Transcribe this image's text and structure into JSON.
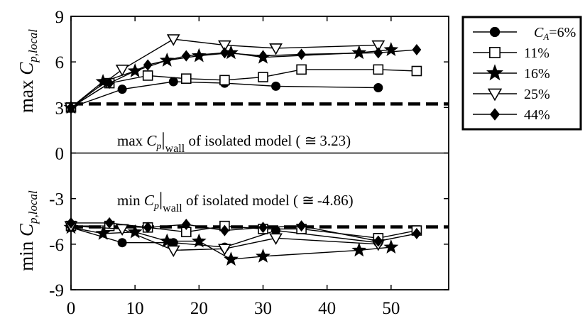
{
  "chart_data": {
    "type": "line",
    "x_ticks": [
      "0",
      "10",
      "20",
      "30",
      "40",
      "50"
    ],
    "xlim": [
      0,
      59
    ],
    "ylim": [
      -9,
      9
    ],
    "y_ticks": [
      "9",
      "6",
      "3",
      "0",
      "-3",
      "-6",
      "-9"
    ],
    "ylabel_top": {
      "main": "max ",
      "sym": "C",
      "sub": "p,local"
    },
    "ylabel_bottom": {
      "main": "min ",
      "sym": "C",
      "sub": "p,local"
    },
    "reference_lines": [
      {
        "y": 3.23,
        "style": "dashed"
      },
      {
        "y": -4.86,
        "style": "dashed"
      },
      {
        "y": 0,
        "style": "solid"
      }
    ],
    "annotations": [
      {
        "pre": "max ",
        "sym": "C",
        "sub": "p",
        "bar": "|",
        "wall": "wall",
        "post": " of isolated model ( ",
        "approx": "≅",
        "value": "3.23)"
      },
      {
        "pre": "min ",
        "sym": "C",
        "sub": "p",
        "bar": "|",
        "wall": "wall",
        "post": " of isolated model ( ",
        "approx": "≅",
        "value": "-4.86)"
      }
    ],
    "legend": {
      "position": "right",
      "entries": [
        {
          "sym": "C",
          "sub": "A",
          "label": "=6%",
          "marker": "circle-filled"
        },
        {
          "label": "11%",
          "marker": "square-open"
        },
        {
          "label": "16%",
          "marker": "star-filled"
        },
        {
          "label": "25%",
          "marker": "triangle-down-open"
        },
        {
          "label": "44%",
          "marker": "diamond-filled"
        }
      ]
    },
    "series": [
      {
        "label_index": 0,
        "marker": "circle-filled",
        "max": [
          [
            0,
            3.0
          ],
          [
            8,
            4.2
          ],
          [
            16,
            4.7
          ],
          [
            24,
            4.6
          ],
          [
            32,
            4.4
          ],
          [
            48,
            4.3
          ]
        ],
        "min": [
          [
            0,
            -4.9
          ],
          [
            8,
            -5.9
          ],
          [
            16,
            -5.9
          ],
          [
            24,
            -6.2
          ],
          [
            32,
            -5.1
          ],
          [
            48,
            -5.9
          ]
        ]
      },
      {
        "label_index": 1,
        "marker": "square-open",
        "max": [
          [
            0,
            3.0
          ],
          [
            6,
            4.6
          ],
          [
            12,
            5.1
          ],
          [
            18,
            4.9
          ],
          [
            24,
            4.8
          ],
          [
            30,
            5.0
          ],
          [
            36,
            5.5
          ],
          [
            48,
            5.5
          ],
          [
            54,
            5.4
          ]
        ],
        "min": [
          [
            0,
            -4.8
          ],
          [
            6,
            -4.8
          ],
          [
            12,
            -4.9
          ],
          [
            18,
            -5.2
          ],
          [
            24,
            -4.8
          ],
          [
            30,
            -5.0
          ],
          [
            36,
            -5.0
          ],
          [
            48,
            -5.6
          ],
          [
            54,
            -5.1
          ]
        ]
      },
      {
        "label_index": 2,
        "marker": "star-filled",
        "max": [
          [
            0,
            3.0
          ],
          [
            5,
            4.7
          ],
          [
            10,
            5.4
          ],
          [
            15,
            6.1
          ],
          [
            20,
            6.4
          ],
          [
            25,
            6.6
          ],
          [
            30,
            6.3
          ],
          [
            45,
            6.6
          ],
          [
            50,
            6.8
          ]
        ],
        "min": [
          [
            0,
            -4.9
          ],
          [
            5,
            -5.3
          ],
          [
            10,
            -5.2
          ],
          [
            15,
            -5.8
          ],
          [
            20,
            -5.8
          ],
          [
            25,
            -7.0
          ],
          [
            30,
            -6.8
          ],
          [
            45,
            -6.4
          ],
          [
            50,
            -6.2
          ]
        ]
      },
      {
        "label_index": 3,
        "marker": "triangle-down-open",
        "max": [
          [
            0,
            3.0
          ],
          [
            8,
            5.5
          ],
          [
            16,
            7.5
          ],
          [
            24,
            7.1
          ],
          [
            32,
            6.9
          ],
          [
            48,
            7.1
          ]
        ],
        "min": [
          [
            0,
            -4.8
          ],
          [
            8,
            -5.0
          ],
          [
            16,
            -6.4
          ],
          [
            24,
            -6.3
          ],
          [
            32,
            -5.6
          ],
          [
            48,
            -6.0
          ]
        ]
      },
      {
        "label_index": 4,
        "marker": "diamond-filled",
        "max": [
          [
            0,
            3.0
          ],
          [
            6,
            4.6
          ],
          [
            12,
            5.8
          ],
          [
            18,
            6.4
          ],
          [
            24,
            6.6
          ],
          [
            30,
            6.4
          ],
          [
            36,
            6.5
          ],
          [
            48,
            6.6
          ],
          [
            54,
            6.8
          ]
        ],
        "min": [
          [
            0,
            -4.6
          ],
          [
            6,
            -4.6
          ],
          [
            12,
            -4.9
          ],
          [
            18,
            -4.7
          ],
          [
            24,
            -5.1
          ],
          [
            30,
            -4.9
          ],
          [
            36,
            -4.8
          ],
          [
            48,
            -5.8
          ],
          [
            54,
            -5.3
          ]
        ]
      }
    ]
  }
}
